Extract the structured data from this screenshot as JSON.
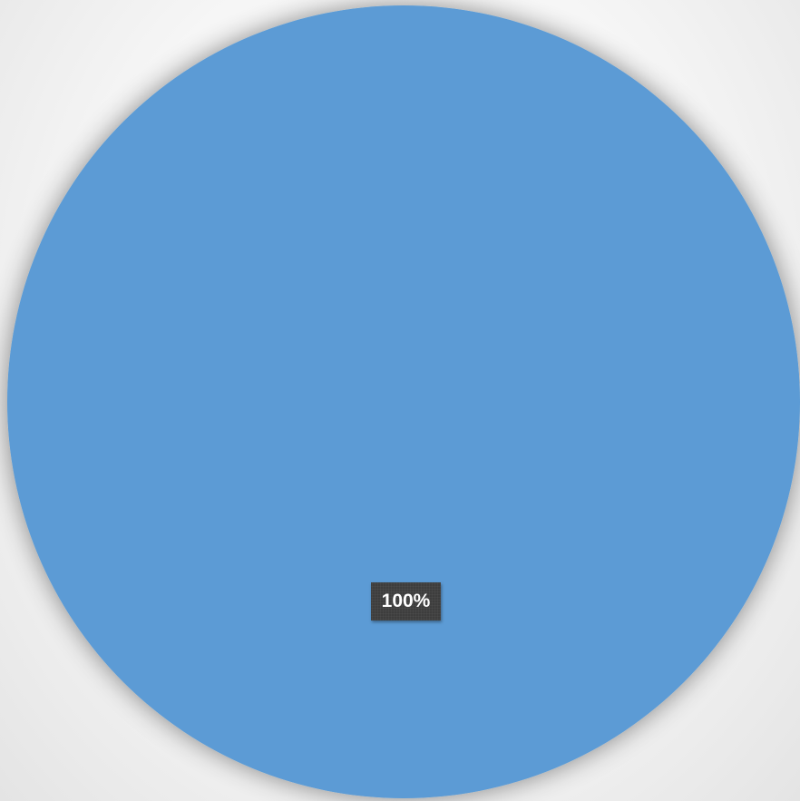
{
  "chart_data": {
    "type": "pie",
    "categories": [
      ""
    ],
    "values": [
      100
    ],
    "data_labels": [
      "100%"
    ],
    "colors": [
      "#5b9bd5"
    ],
    "title": "",
    "legend": "none"
  }
}
